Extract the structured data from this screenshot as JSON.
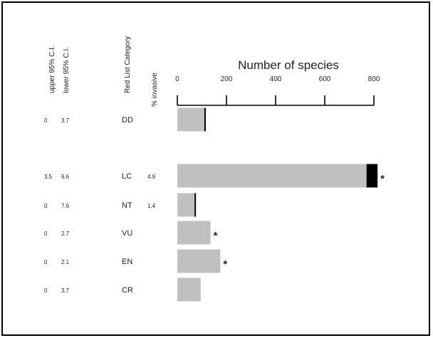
{
  "chart_data": {
    "type": "bar",
    "title": "Number of species",
    "xlim": [
      0,
      800
    ],
    "ticks": [
      "0",
      "200",
      "400",
      "600",
      "800"
    ],
    "column_headers": {
      "upper_ci": "upper 95% C.I.",
      "lower_ci": "lower 95% C.I.",
      "category": "Red List Category",
      "invasive": "% invasive"
    },
    "categories": [
      "DD",
      "LC",
      "NT",
      "VU",
      "EN",
      "CR"
    ],
    "upper_ci": [
      "0",
      "3.5",
      "0",
      "0",
      "0",
      "0"
    ],
    "lower_ci": [
      "3.7",
      "6.6",
      "7.6",
      "2.7",
      "2.1",
      "3.7"
    ],
    "invasive_pct": [
      "",
      "4.9",
      "1.4",
      "",
      "",
      ""
    ],
    "series": [
      {
        "values": [
          110,
          770,
          70,
          135,
          175,
          95
        ],
        "color": "#c0c0c0"
      },
      {
        "values": [
          5,
          45,
          2,
          0,
          0,
          0
        ],
        "color": "#000000"
      }
    ],
    "significant": [
      "",
      "*",
      "",
      "*",
      "*",
      ""
    ],
    "grid": false,
    "legend": "none"
  }
}
